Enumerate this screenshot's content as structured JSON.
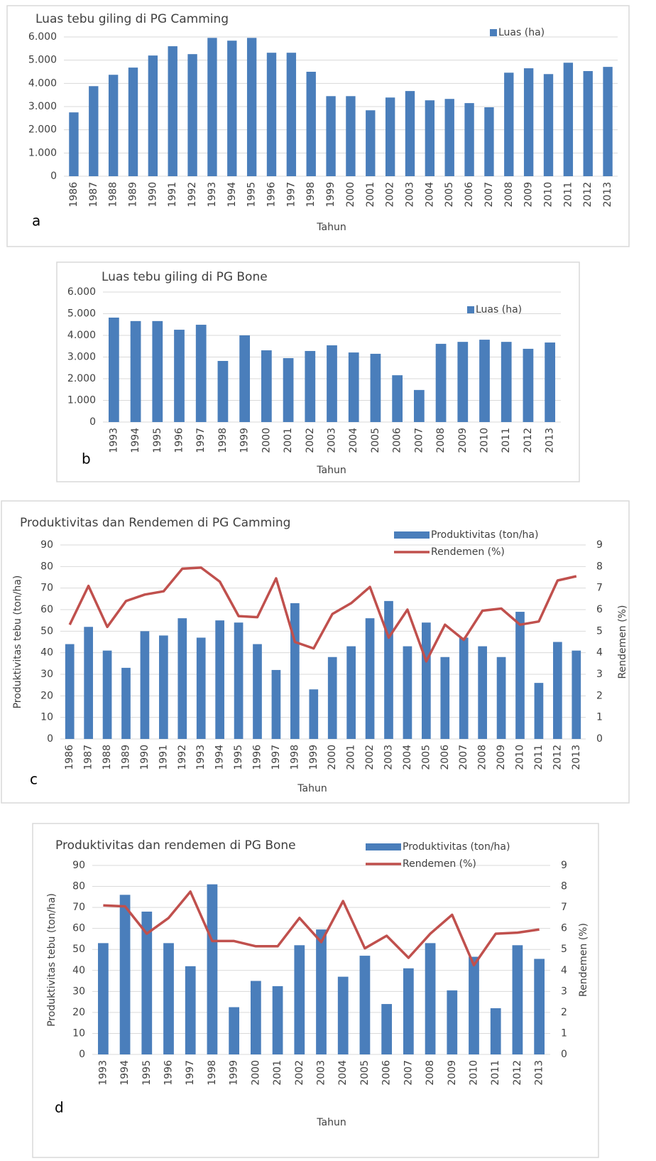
{
  "chart_data": [
    {
      "type": "bar",
      "panel_label": "a",
      "title": "Luas tebu giling di PG Camming",
      "x_label": "Tahun",
      "categories": [
        "1986",
        "1987",
        "1988",
        "1989",
        "1990",
        "1991",
        "1992",
        "1993",
        "1994",
        "1995",
        "1996",
        "1997",
        "1998",
        "1999",
        "2000",
        "2001",
        "2002",
        "2003",
        "2004",
        "2005",
        "2006",
        "2007",
        "2008",
        "2009",
        "2010",
        "2011",
        "2012",
        "2013"
      ],
      "series": [
        {
          "name": "Luas (ha)",
          "type": "bar",
          "color": "#4a7ebb",
          "values": [
            2750,
            3880,
            4370,
            4680,
            5200,
            5600,
            5260,
            5960,
            5840,
            5960,
            5320,
            5320,
            4500,
            3450,
            3450,
            2840,
            3390,
            3670,
            3270,
            3330,
            3150,
            2970,
            4460,
            4650,
            4400,
            4890,
            4530,
            4710
          ]
        }
      ],
      "ylim": [
        0,
        6000
      ],
      "yticks": [
        0,
        {
          "value": 1000,
          "label": "1.000"
        },
        {
          "value": 2000,
          "label": "2.000"
        },
        {
          "value": 3000,
          "label": "3.000"
        },
        {
          "value": 4000,
          "label": "4.000"
        },
        {
          "value": 5000,
          "label": "5.000"
        },
        {
          "value": 6000,
          "label": "6.000"
        }
      ],
      "grid": true,
      "legend": "upper right"
    },
    {
      "type": "bar",
      "panel_label": "b",
      "title": "Luas  tebu giling di PG Bone",
      "x_label": "Tahun",
      "categories": [
        "1993",
        "1994",
        "1995",
        "1996",
        "1997",
        "1998",
        "1999",
        "2000",
        "2001",
        "2002",
        "2003",
        "2004",
        "2005",
        "2006",
        "2007",
        "2008",
        "2009",
        "2010",
        "2011",
        "2012",
        "2013"
      ],
      "series": [
        {
          "name": "Luas (ha)",
          "type": "bar",
          "color": "#4a7ebb",
          "values": [
            4820,
            4660,
            4660,
            4260,
            4490,
            2820,
            4000,
            3310,
            2950,
            3280,
            3540,
            3210,
            3150,
            2160,
            1480,
            3610,
            3700,
            3800,
            3700,
            3380,
            3670
          ]
        }
      ],
      "ylim": [
        0,
        6000
      ],
      "yticks": [
        0,
        {
          "value": 1000,
          "label": "1.000"
        },
        {
          "value": 2000,
          "label": "2.000"
        },
        {
          "value": 3000,
          "label": "3.000"
        },
        {
          "value": 4000,
          "label": "4.000"
        },
        {
          "value": 5000,
          "label": "5.000"
        },
        {
          "value": 6000,
          "label": "6.000"
        }
      ],
      "grid": true,
      "legend": "upper right"
    },
    {
      "type": "combo",
      "panel_label": "c",
      "title": "Produktivitas dan Rendemen di PG Camming",
      "x_label": "Tahun",
      "y_label": "Produktivitas tebu (ton/ha)",
      "y2_label": "Rendemen (%)",
      "categories": [
        "1986",
        "1987",
        "1988",
        "1989",
        "1990",
        "1991",
        "1992",
        "1993",
        "1994",
        "1995",
        "1996",
        "1997",
        "1998",
        "1999",
        "2000",
        "2001",
        "2002",
        "2003",
        "2004",
        "2005",
        "2006",
        "2007",
        "2008",
        "2009",
        "2010",
        "2011",
        "2012",
        "2013"
      ],
      "series": [
        {
          "name": "Produktivitas (ton/ha)",
          "type": "bar",
          "color": "#4a7ebb",
          "values": [
            44,
            52,
            41,
            33,
            50,
            48,
            56,
            47,
            55,
            54,
            44,
            32,
            63,
            23,
            38,
            43,
            56,
            64,
            43,
            54,
            38,
            47,
            43,
            38,
            59,
            26,
            45,
            41
          ]
        },
        {
          "name": "Rendemen (%)",
          "type": "line",
          "axis": "y2",
          "color": "#c0504d",
          "values": [
            5.3,
            7.1,
            5.2,
            6.4,
            6.7,
            6.85,
            7.9,
            7.95,
            7.3,
            5.7,
            5.65,
            7.45,
            4.5,
            4.2,
            5.8,
            6.3,
            7.05,
            4.7,
            6.0,
            3.6,
            5.3,
            4.6,
            5.95,
            6.05,
            5.3,
            5.45,
            7.35,
            7.55
          ]
        }
      ],
      "ylim": [
        0,
        90
      ],
      "yticks": [
        0,
        10,
        20,
        30,
        40,
        50,
        60,
        70,
        80,
        90
      ],
      "y2lim": [
        0,
        9
      ],
      "y2ticks": [
        0,
        1,
        2,
        3,
        4,
        5,
        6,
        7,
        8,
        9
      ],
      "grid": true,
      "legend": "upper right"
    },
    {
      "type": "combo",
      "panel_label": "d",
      "title": "Produktivitas dan rendemen di PG Bone",
      "x_label": "Tahun",
      "y_label": "Produktivitas tebu (ton/ha)",
      "y2_label": "Rendemen (%)",
      "categories": [
        "1993",
        "1994",
        "1995",
        "1996",
        "1997",
        "1998",
        "1999",
        "2000",
        "2001",
        "2002",
        "2003",
        "2004",
        "2005",
        "2006",
        "2007",
        "2008",
        "2009",
        "2010",
        "2011",
        "2012",
        "2013"
      ],
      "series": [
        {
          "name": "Produktivitas (ton/ha)",
          "type": "bar",
          "color": "#4a7ebb",
          "values": [
            53,
            76,
            68,
            53,
            42,
            81,
            22.5,
            35,
            32.5,
            52,
            59.5,
            37,
            47,
            24,
            41,
            53,
            30.5,
            46.5,
            22,
            52,
            45.5
          ]
        },
        {
          "name": "Rendemen (%)",
          "type": "line",
          "axis": "y2",
          "color": "#c0504d",
          "values": [
            7.1,
            7.05,
            5.75,
            6.5,
            7.75,
            5.4,
            5.4,
            5.15,
            5.15,
            6.5,
            5.35,
            7.3,
            5.05,
            5.65,
            4.6,
            5.75,
            6.65,
            4.25,
            5.75,
            5.8,
            5.95
          ]
        }
      ],
      "ylim": [
        0,
        90
      ],
      "yticks": [
        0,
        10,
        20,
        30,
        40,
        50,
        60,
        70,
        80,
        90
      ],
      "y2lim": [
        0,
        9
      ],
      "y2ticks": [
        0,
        1,
        2,
        3,
        4,
        5,
        6,
        7,
        8,
        9
      ],
      "grid": true,
      "legend": "upper right"
    }
  ]
}
